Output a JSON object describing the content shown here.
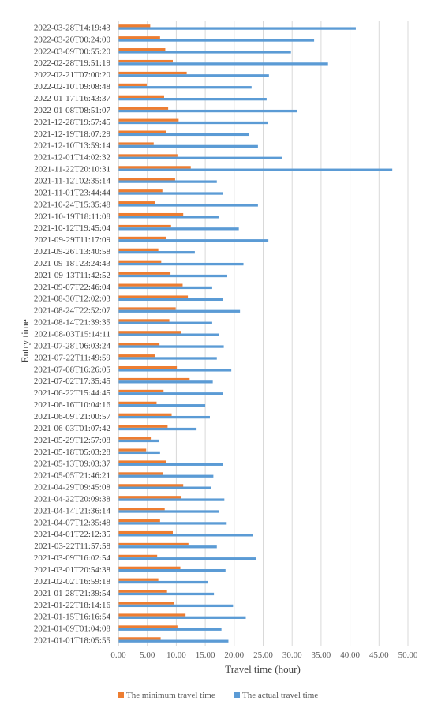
{
  "chart_data": {
    "type": "bar",
    "orientation": "horizontal",
    "xlabel": "Travel time (hour)",
    "ylabel": "Entry time",
    "xlim": [
      0,
      50
    ],
    "x_ticks": [
      "0.00",
      "5.00",
      "10.00",
      "15.00",
      "20.00",
      "25.00",
      "30.00",
      "35.00",
      "40.00",
      "45.00",
      "50.00"
    ],
    "y_tick_labels": [
      "2022-03-28T14:19:43",
      "2022-03-20T00:24:00",
      "2022-03-09T00:55:20",
      "2022-02-28T19:51:19",
      "2022-02-21T07:00:20",
      "2022-02-10T09:08:48",
      "2022-01-17T16:43:37",
      "2022-01-08T08:51:07",
      "2021-12-28T19:57:45",
      "2021-12-19T18:07:29",
      "2021-12-10T13:59:14",
      "2021-12-01T14:02:32",
      "2021-11-22T20:10:31",
      "2021-11-12T02:35:14",
      "2021-11-01T23:44:44",
      "2021-10-24T15:35:48",
      "2021-10-19T18:11:08",
      "2021-10-12T19:45:04",
      "2021-09-29T11:17:09",
      "2021-09-26T13:40:58",
      "2021-09-18T23:24:43",
      "2021-09-13T11:42:52",
      "2021-09-07T22:46:04",
      "2021-08-30T12:02:03",
      "2021-08-24T22:52:07",
      "2021-08-14T21:39:35",
      "2021-08-03T15:14:11",
      "2021-07-28T06:03:24",
      "2021-07-22T11:49:59",
      "2021-07-08T16:26:05",
      "2021-07-02T17:35:45",
      "2021-06-22T15:44:45",
      "2021-06-16T10:04:16",
      "2021-06-09T21:00:57",
      "2021-06-03T01:07:42",
      "2021-05-29T12:57:08",
      "2021-05-18T05:03:28",
      "2021-05-13T09:03:37",
      "2021-05-05T21:46:21",
      "2021-04-29T09:45:08",
      "2021-04-22T20:09:38",
      "2021-04-14T21:36:14",
      "2021-04-07T12:35:48",
      "2021-04-01T22:12:35",
      "2021-03-22T11:57:58",
      "2021-03-09T16:02:54",
      "2021-03-01T20:54:38",
      "2021-02-02T16:59:18",
      "2021-01-28T21:39:54",
      "2021-01-22T18:14:16",
      "2021-01-15T16:16:54",
      "2021-01-09T01:04:08",
      "2021-01-01T18:05:55"
    ],
    "legend": {
      "placement": "bottom-center"
    },
    "series": [
      {
        "name": "The minimum travel time",
        "color": "#ed7d31",
        "values": [
          5.5,
          7.2,
          8.1,
          9.4,
          11.8,
          4.9,
          7.9,
          8.6,
          10.4,
          8.2,
          6.1,
          10.2,
          12.5,
          9.8,
          7.6,
          6.3,
          11.2,
          9.1,
          8.3,
          6.9,
          7.4,
          9.0,
          11.1,
          12.0,
          9.9,
          8.8,
          10.8,
          7.1,
          6.4,
          10.1,
          12.3,
          7.8,
          6.6,
          9.2,
          8.5,
          5.6,
          4.8,
          8.2,
          7.7,
          11.2,
          10.9,
          8.0,
          7.2,
          9.4,
          12.1,
          6.7,
          10.7,
          6.9,
          8.4,
          9.6,
          11.6,
          10.2,
          7.3
        ]
      },
      {
        "name": "The actual travel time",
        "color": "#5b9bd5",
        "values": [
          41.0,
          33.8,
          29.8,
          36.2,
          26.0,
          23.0,
          25.6,
          30.9,
          25.8,
          22.5,
          24.1,
          28.2,
          47.3,
          17.0,
          18.0,
          24.1,
          17.3,
          20.8,
          25.9,
          13.2,
          21.6,
          18.8,
          16.2,
          18.0,
          21.0,
          16.2,
          17.4,
          18.2,
          17.0,
          19.5,
          16.3,
          18.0,
          15.0,
          15.8,
          13.5,
          7.0,
          7.2,
          18.0,
          16.4,
          16.0,
          18.3,
          17.4,
          18.7,
          23.2,
          17.0,
          23.8,
          18.5,
          15.5,
          16.5,
          19.8,
          22.0,
          17.8,
          19.0
        ]
      }
    ]
  }
}
